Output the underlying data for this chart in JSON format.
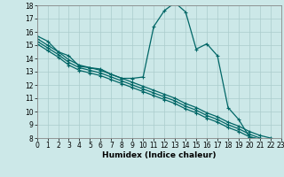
{
  "xlabel": "Humidex (Indice chaleur)",
  "xlim": [
    0,
    23
  ],
  "ylim": [
    8,
    18
  ],
  "yticks": [
    8,
    9,
    10,
    11,
    12,
    13,
    14,
    15,
    16,
    17,
    18
  ],
  "xticks": [
    0,
    1,
    2,
    3,
    4,
    5,
    6,
    7,
    8,
    9,
    10,
    11,
    12,
    13,
    14,
    15,
    16,
    17,
    18,
    19,
    20,
    21,
    22,
    23
  ],
  "bg_color": "#cce8e8",
  "grid_color": "#aacccc",
  "line_color": "#006666",
  "line_width": 0.9,
  "marker": "+",
  "marker_size": 3,
  "spike_x": [
    0,
    1,
    2,
    3,
    4,
    5,
    6,
    7,
    8,
    9,
    10,
    11,
    12,
    13,
    14,
    15,
    16,
    17,
    18,
    19,
    20,
    21,
    22,
    23
  ],
  "spike_y": [
    15.7,
    15.3,
    14.5,
    14.2,
    13.4,
    13.3,
    13.2,
    12.8,
    12.5,
    12.5,
    12.6,
    16.4,
    17.6,
    18.2,
    17.5,
    14.7,
    15.1,
    14.2,
    10.3,
    9.4,
    8.1,
    7.9,
    7.85,
    7.7
  ],
  "line2_x": [
    0,
    1,
    2,
    3,
    4,
    5,
    6,
    7,
    8,
    9,
    10,
    11,
    12,
    13,
    14,
    15,
    16,
    17,
    18,
    19,
    20,
    21,
    22,
    23
  ],
  "line2_y": [
    15.5,
    15.0,
    14.5,
    13.9,
    13.5,
    13.3,
    13.1,
    12.8,
    12.5,
    12.2,
    11.9,
    11.6,
    11.3,
    11.0,
    10.6,
    10.3,
    9.9,
    9.6,
    9.2,
    8.9,
    8.5,
    8.2,
    8.0,
    7.8
  ],
  "line3_x": [
    0,
    1,
    2,
    3,
    4,
    5,
    6,
    7,
    8,
    9,
    10,
    11,
    12,
    13,
    14,
    15,
    16,
    17,
    18,
    19,
    20,
    21,
    22,
    23
  ],
  "line3_y": [
    15.3,
    14.8,
    14.3,
    13.7,
    13.3,
    13.1,
    12.9,
    12.6,
    12.3,
    12.0,
    11.7,
    11.4,
    11.1,
    10.8,
    10.4,
    10.1,
    9.7,
    9.4,
    9.0,
    8.7,
    8.3,
    8.0,
    7.8,
    7.65
  ],
  "line4_x": [
    0,
    1,
    2,
    3,
    4,
    5,
    6,
    7,
    8,
    9,
    10,
    11,
    12,
    13,
    14,
    15,
    16,
    17,
    18,
    19,
    20,
    21,
    22,
    23
  ],
  "line4_y": [
    15.1,
    14.6,
    14.1,
    13.5,
    13.1,
    12.9,
    12.7,
    12.4,
    12.1,
    11.8,
    11.5,
    11.2,
    10.9,
    10.6,
    10.2,
    9.9,
    9.5,
    9.2,
    8.8,
    8.5,
    8.1,
    7.9,
    7.7,
    7.55
  ]
}
